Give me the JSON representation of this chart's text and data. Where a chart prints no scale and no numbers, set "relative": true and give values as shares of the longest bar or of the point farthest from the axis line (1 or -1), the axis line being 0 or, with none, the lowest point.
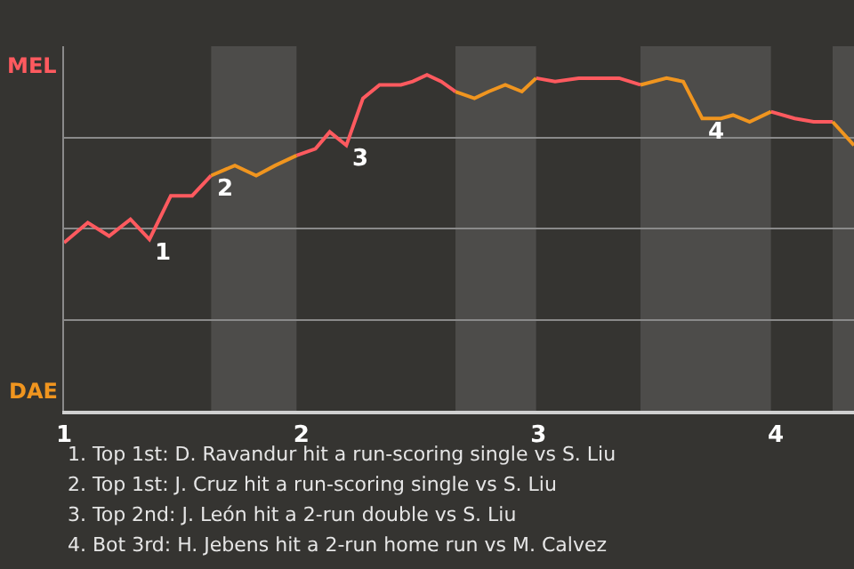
{
  "chart_data": {
    "type": "line",
    "relative": true,
    "xlim": [
      1,
      4.33
    ],
    "xticks": [
      1,
      2,
      3,
      4
    ],
    "grid": "y",
    "marker": "none",
    "line_style": "solid",
    "series": [
      {
        "color": "#ff5a5f",
        "x": [
          1,
          1.1,
          1.19,
          1.28,
          1.36,
          1.45,
          1.54,
          1.62,
          1.8,
          1.98,
          2.06,
          2.12,
          2.19,
          2.26,
          2.33,
          2.42,
          2.47,
          2.53,
          2.59,
          2.65,
          2.8,
          2.99,
          3.07,
          3.17,
          3.34,
          3.43,
          3.7,
          3.98,
          4.08,
          4.16,
          4.24
        ],
        "values": [
          0.5,
          0.56,
          0.52,
          0.57,
          0.51,
          0.64,
          0.64,
          0.7,
          null,
          0.76,
          0.78,
          0.83,
          0.79,
          0.93,
          0.97,
          0.97,
          0.98,
          1,
          0.98,
          0.95,
          null,
          0.99,
          0.98,
          0.99,
          0.99,
          0.97,
          null,
          0.89,
          0.87,
          0.86,
          0.86
        ]
      },
      {
        "color": "#f0951f",
        "x": [
          1.62,
          1.72,
          1.81,
          1.89,
          1.98,
          2.3,
          2.65,
          2.73,
          2.79,
          2.86,
          2.93,
          2.99,
          3.2,
          3.43,
          3.54,
          3.61,
          3.69,
          3.77,
          3.82,
          3.89,
          3.98,
          4.1,
          4.24,
          4.33
        ],
        "values": [
          0.7,
          0.73,
          0.7,
          0.73,
          0.76,
          null,
          0.95,
          0.93,
          0.95,
          0.97,
          0.95,
          0.99,
          null,
          0.97,
          0.99,
          0.98,
          0.87,
          0.87,
          0.88,
          0.86,
          0.89,
          null,
          0.86,
          0.79
        ]
      }
    ],
    "bands": [
      {
        "axis": "x",
        "from": 1.62,
        "to": 1.98,
        "color": "#4d4c4a"
      },
      {
        "axis": "x",
        "from": 2.65,
        "to": 2.99,
        "color": "#4d4c4a"
      },
      {
        "axis": "x",
        "from": 3.43,
        "to": 3.98,
        "color": "#4d4c4a"
      },
      {
        "axis": "x",
        "from": 4.24,
        "to": 4.33,
        "color": "#4d4c4a"
      }
    ],
    "annotations": [
      {
        "text": "1",
        "x": 1.36,
        "y": 0.51
      },
      {
        "text": "2",
        "x": 1.62,
        "y": 0.7
      },
      {
        "text": "3",
        "x": 2.19,
        "y": 0.79
      },
      {
        "text": "4",
        "x": 3.69,
        "y": 0.87
      },
      "MEL",
      "DAE",
      "1. Top 1st: D. Ravandur hit a run-scoring single vs S. Liu",
      "2. Top 1st: J. Cruz hit a run-scoring single vs S. Liu",
      "3. Top 2nd: J. León hit a 2-run double vs S. Liu",
      "4. Bot 3rd: H. Jebens hit a 2-run home run vs M. Calvez"
    ]
  }
}
